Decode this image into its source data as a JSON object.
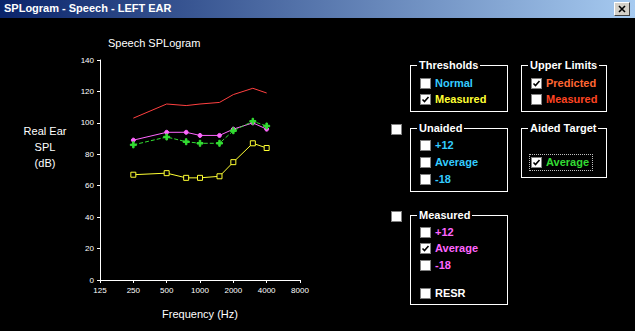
{
  "window": {
    "title": "SPLogram - Speech - LEFT EAR"
  },
  "chart_data": {
    "type": "line",
    "title": "Speech SPLogram",
    "ylabel": "Real Ear\nSPL\n(dB)",
    "xlabel": "Frequency (Hz)",
    "log": "x",
    "grid": false,
    "x": [
      250,
      500,
      750,
      1000,
      1500,
      2000,
      3000,
      4000
    ],
    "xlim": [
      125,
      8000
    ],
    "xticks": [
      125,
      250,
      500,
      1000,
      2000,
      4000,
      8000
    ],
    "ylim": [
      0,
      140
    ],
    "yticks": [
      0,
      20,
      40,
      60,
      80,
      100,
      120,
      140
    ],
    "series": [
      {
        "color": "#ff4040",
        "marker": "none",
        "line_style": "solid",
        "values": [
          103,
          112,
          111,
          112,
          113,
          118,
          122,
          119
        ]
      },
      {
        "color": "#ff66ff",
        "marker": "circle",
        "line_style": "solid",
        "values": [
          89,
          94,
          94,
          92,
          92,
          96,
          100,
          96
        ]
      },
      {
        "color": "#33dd33",
        "marker": "plus",
        "line_style": "dashed",
        "values": [
          86,
          91,
          88,
          87,
          87,
          95,
          101,
          98
        ]
      },
      {
        "color": "#ffff33",
        "marker": "square",
        "line_style": "solid",
        "values": [
          67,
          68,
          65,
          65,
          66,
          75,
          87,
          84
        ]
      }
    ]
  },
  "panels": [
    {
      "title": "Thresholds",
      "items": [
        {
          "label": "Normal",
          "checked": false,
          "color": "#33ccff"
        },
        {
          "label": "Measured",
          "checked": true,
          "color": "#ffff33"
        }
      ]
    },
    {
      "title": "Upper Limits",
      "items": [
        {
          "label": "Predicted",
          "checked": true,
          "color": "#ff6633"
        },
        {
          "label": "Measured",
          "checked": false,
          "color": "#ff4422"
        }
      ]
    },
    {
      "title": "Unaided",
      "master_checked": false,
      "items": [
        {
          "label": "+12",
          "checked": false,
          "color": "#33ccff"
        },
        {
          "label": "Average",
          "checked": false,
          "color": "#33ccff"
        },
        {
          "label": "-18",
          "checked": false,
          "color": "#33ccff"
        }
      ]
    },
    {
      "title": "Aided Target",
      "items": [
        {
          "label": "Average",
          "checked": true,
          "color": "#33dd33"
        }
      ]
    },
    {
      "title": "Measured",
      "master_checked": false,
      "items": [
        {
          "label": "+12",
          "checked": false,
          "color": "#ff66ff"
        },
        {
          "label": "Average",
          "checked": true,
          "color": "#ff66ff"
        },
        {
          "label": "-18",
          "checked": false,
          "color": "#ff66ff"
        },
        {
          "label": "RESR",
          "checked": false,
          "color": "#ffffff"
        }
      ]
    }
  ]
}
